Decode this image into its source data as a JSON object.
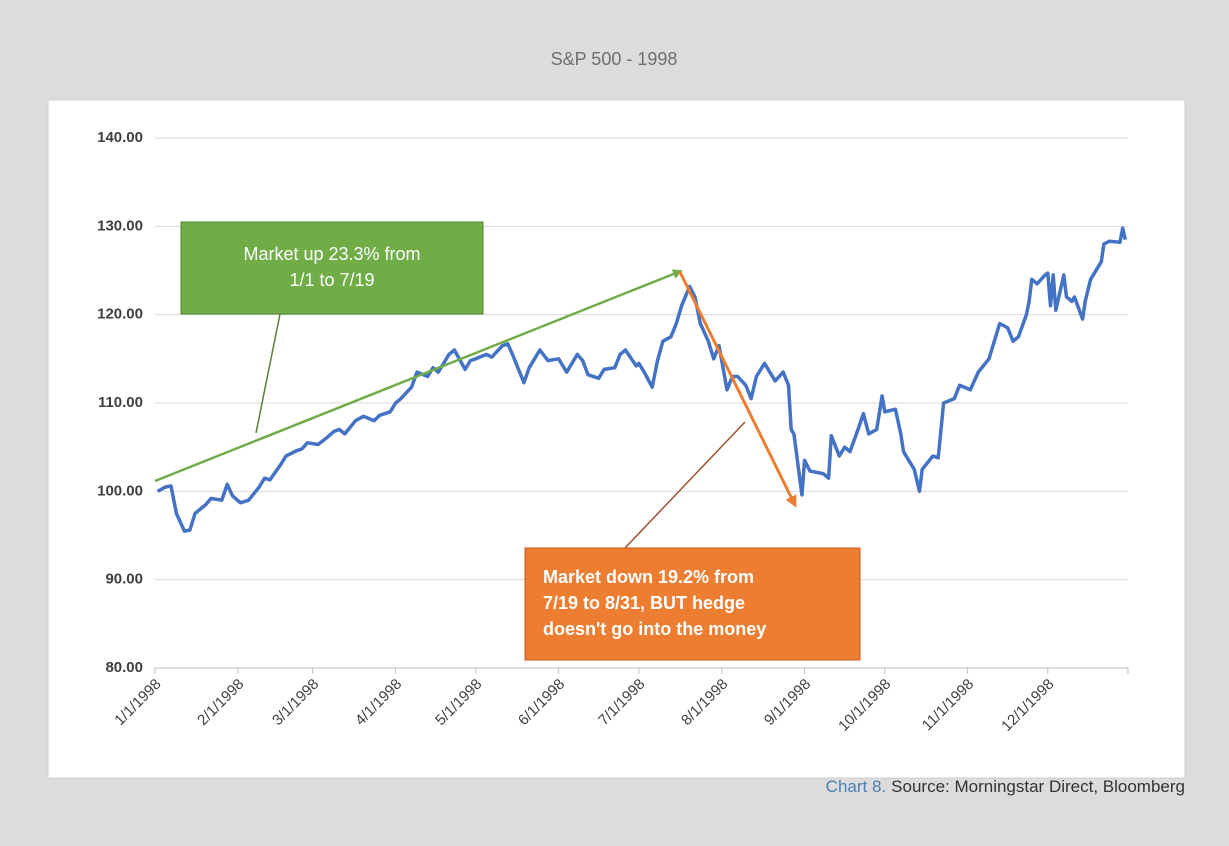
{
  "chart_data": {
    "type": "line",
    "title": "S&P 500 - 1998",
    "caption_label": "Chart 8.",
    "caption_source": "Source: Morningstar Direct, Bloomberg",
    "xlim": [
      "1/1/1998",
      "12/31/1998"
    ],
    "xticks": [
      "1/1/1998",
      "2/1/1998",
      "3/1/1998",
      "4/1/1998",
      "5/1/1998",
      "6/1/1998",
      "7/1/1998",
      "8/1/1998",
      "9/1/1998",
      "10/1/1998",
      "11/1/1998",
      "12/1/1998"
    ],
    "ylim": [
      80,
      140
    ],
    "yticks": [
      {
        "value": 80,
        "label": "80.00"
      },
      {
        "value": 90,
        "label": "90.00"
      },
      {
        "value": 100,
        "label": "100.00"
      },
      {
        "value": 110,
        "label": "110.00"
      },
      {
        "value": 120,
        "label": "120.00"
      },
      {
        "value": 130,
        "label": "130.00"
      },
      {
        "value": 140,
        "label": "140.00"
      }
    ],
    "grid": true,
    "annotations": [
      {
        "lines": [
          "Market up 23.3% from",
          "1/1 to 7/19"
        ],
        "color": "#70ad47"
      },
      {
        "lines": [
          "Market down 19.2% from",
          "7/19 to 8/31, BUT hedge",
          "doesn't go into the money"
        ],
        "color": "#ed7d31"
      }
    ],
    "series": [
      {
        "name": "S&P 500",
        "color": "#4472c4",
        "x": [
          "1/2/1998",
          "1/5/1998",
          "1/7/1998",
          "1/9/1998",
          "1/12/1998",
          "1/14/1998",
          "1/16/1998",
          "1/20/1998",
          "1/22/1998",
          "1/26/1998",
          "1/28/1998",
          "1/30/1998",
          "2/2/1998",
          "2/5/1998",
          "2/9/1998",
          "2/11/1998",
          "2/13/1998",
          "2/17/1998",
          "2/19/1998",
          "2/23/1998",
          "2/25/1998",
          "2/27/1998",
          "3/3/1998",
          "3/6/1998",
          "3/9/1998",
          "3/11/1998",
          "3/13/1998",
          "3/17/1998",
          "3/20/1998",
          "3/24/1998",
          "3/26/1998",
          "3/30/1998",
          "4/1/1998",
          "4/3/1998",
          "4/7/1998",
          "4/9/1998",
          "4/13/1998",
          "4/15/1998",
          "4/17/1998",
          "4/21/1998",
          "4/23/1998",
          "4/27/1998",
          "4/29/1998",
          "5/1/1998",
          "5/5/1998",
          "5/7/1998",
          "5/11/1998",
          "5/13/1998",
          "5/15/1998",
          "5/19/1998",
          "5/21/1998",
          "5/25/1998",
          "5/28/1998",
          "6/1/1998",
          "6/4/1998",
          "6/8/1998",
          "6/10/1998",
          "6/12/1998",
          "6/16/1998",
          "6/18/1998",
          "6/22/1998",
          "6/24/1998",
          "6/26/1998",
          "6/30/1998",
          "7/1/1998",
          "7/3/1998",
          "7/6/1998",
          "7/8/1998",
          "7/10/1998",
          "7/13/1998",
          "7/15/1998",
          "7/17/1998",
          "7/20/1998",
          "7/22/1998",
          "7/24/1998",
          "7/27/1998",
          "7/29/1998",
          "7/31/1998",
          "8/3/1998",
          "8/5/1998",
          "8/7/1998",
          "8/10/1998",
          "8/12/1998",
          "8/14/1998",
          "8/17/1998",
          "8/19/1998",
          "8/21/1998",
          "8/24/1998",
          "8/26/1998",
          "8/27/1998",
          "8/28/1998",
          "8/31/1998",
          "9/1/1998",
          "9/3/1998",
          "9/8/1998",
          "9/10/1998",
          "9/11/1998",
          "9/14/1998",
          "9/16/1998",
          "9/18/1998",
          "9/21/1998",
          "9/23/1998",
          "9/25/1998",
          "9/28/1998",
          "9/30/1998",
          "10/1/1998",
          "10/5/1998",
          "10/7/1998",
          "10/8/1998",
          "10/9/1998",
          "10/12/1998",
          "10/14/1998",
          "10/15/1998",
          "10/19/1998",
          "10/21/1998",
          "10/23/1998",
          "10/27/1998",
          "10/29/1998",
          "11/2/1998",
          "11/5/1998",
          "11/9/1998",
          "11/11/1998",
          "11/13/1998",
          "11/16/1998",
          "11/18/1998",
          "11/20/1998",
          "11/23/1998",
          "11/24/1998",
          "11/25/1998",
          "11/27/1998",
          "11/30/1998",
          "12/1/1998",
          "12/2/1998",
          "12/3/1998",
          "12/4/1998",
          "12/7/1998",
          "12/8/1998",
          "12/10/1998",
          "12/11/1998",
          "12/14/1998",
          "12/15/1998",
          "12/17/1998",
          "12/18/1998",
          "12/21/1998",
          "12/22/1998",
          "12/24/1998",
          "12/28/1998",
          "12/29/1998",
          "12/30/1998"
        ],
        "values": [
          100.0,
          100.5,
          100.6,
          97.5,
          95.5,
          95.6,
          97.5,
          98.5,
          99.2,
          99.0,
          100.8,
          99.5,
          98.7,
          99.0,
          100.5,
          101.5,
          101.3,
          103.0,
          104.0,
          104.6,
          104.8,
          105.5,
          105.3,
          106.0,
          106.8,
          107.0,
          106.5,
          108.0,
          108.5,
          108.0,
          108.6,
          109.0,
          110.0,
          110.5,
          111.8,
          113.5,
          113.0,
          114.0,
          113.5,
          115.5,
          116.0,
          113.8,
          114.8,
          115.0,
          115.5,
          115.2,
          116.5,
          116.7,
          115.3,
          112.3,
          114.0,
          116.0,
          114.8,
          115.0,
          113.5,
          115.5,
          114.8,
          113.2,
          112.8,
          113.8,
          114.0,
          115.5,
          116.0,
          114.2,
          114.5,
          113.5,
          111.8,
          114.8,
          117.0,
          117.5,
          119.0,
          121.0,
          123.2,
          122.0,
          119.0,
          117.0,
          115.0,
          116.5,
          111.5,
          113.0,
          113.0,
          112.0,
          110.5,
          113.0,
          114.5,
          113.5,
          112.5,
          113.5,
          112.0,
          107.0,
          106.5,
          99.6,
          103.5,
          102.3,
          102.0,
          101.5,
          106.3,
          104.0,
          105.0,
          104.5,
          107.0,
          108.8,
          106.5,
          107.0,
          110.8,
          109.0,
          109.3,
          106.5,
          104.5,
          104.0,
          102.5,
          100.0,
          102.5,
          104.0,
          103.8,
          110.0,
          110.5,
          112.0,
          111.5,
          113.5,
          115.0,
          117.0,
          119.0,
          118.5,
          117.0,
          117.5,
          120.0,
          121.5,
          124.0,
          123.5,
          124.5,
          124.7,
          121.0,
          124.5,
          120.5,
          124.5,
          122.0,
          121.5,
          122.0,
          119.5,
          121.5,
          124.0,
          124.5,
          126.0,
          128.0,
          128.3,
          128.2,
          129.8,
          128.5
        ]
      }
    ]
  }
}
